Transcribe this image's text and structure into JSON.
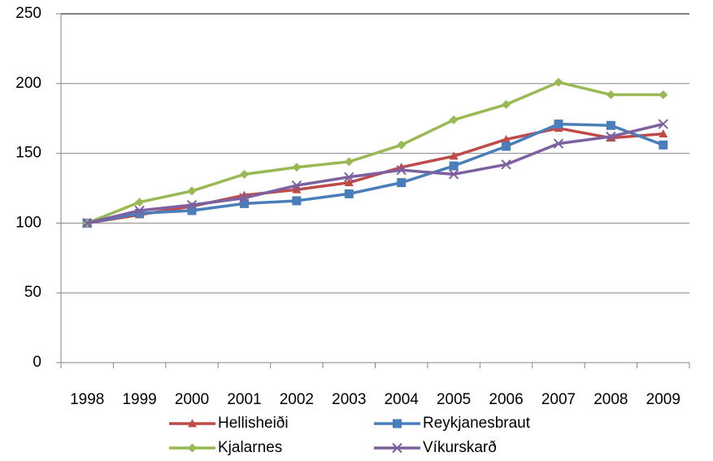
{
  "chart_data": {
    "type": "line",
    "categories": [
      "1998",
      "1999",
      "2000",
      "2001",
      "2002",
      "2003",
      "2004",
      "2005",
      "2006",
      "2007",
      "2008",
      "2009"
    ],
    "series": [
      {
        "name": "Hellisheiði",
        "color": "#be4b48",
        "marker": "triangle",
        "values": [
          100,
          106,
          112,
          120,
          124,
          129,
          140,
          148,
          160,
          168,
          161,
          164
        ]
      },
      {
        "name": "Reykjanesbraut",
        "color": "#4a7ebb",
        "marker": "square",
        "values": [
          100,
          107,
          109,
          114,
          116,
          121,
          129,
          141,
          155,
          171,
          170,
          156
        ]
      },
      {
        "name": "Kjalarnes",
        "color": "#98b954",
        "marker": "diamond",
        "values": [
          100,
          115,
          123,
          135,
          140,
          144,
          156,
          174,
          185,
          201,
          192,
          192
        ]
      },
      {
        "name": "Víkurskarð",
        "color": "#7d60a0",
        "marker": "x",
        "values": [
          100,
          109,
          113,
          118,
          127,
          133,
          138,
          135,
          142,
          157,
          162,
          171
        ]
      }
    ],
    "ylim": [
      0,
      250
    ],
    "yticks": [
      0,
      50,
      100,
      150,
      200,
      250
    ],
    "grid": true
  }
}
